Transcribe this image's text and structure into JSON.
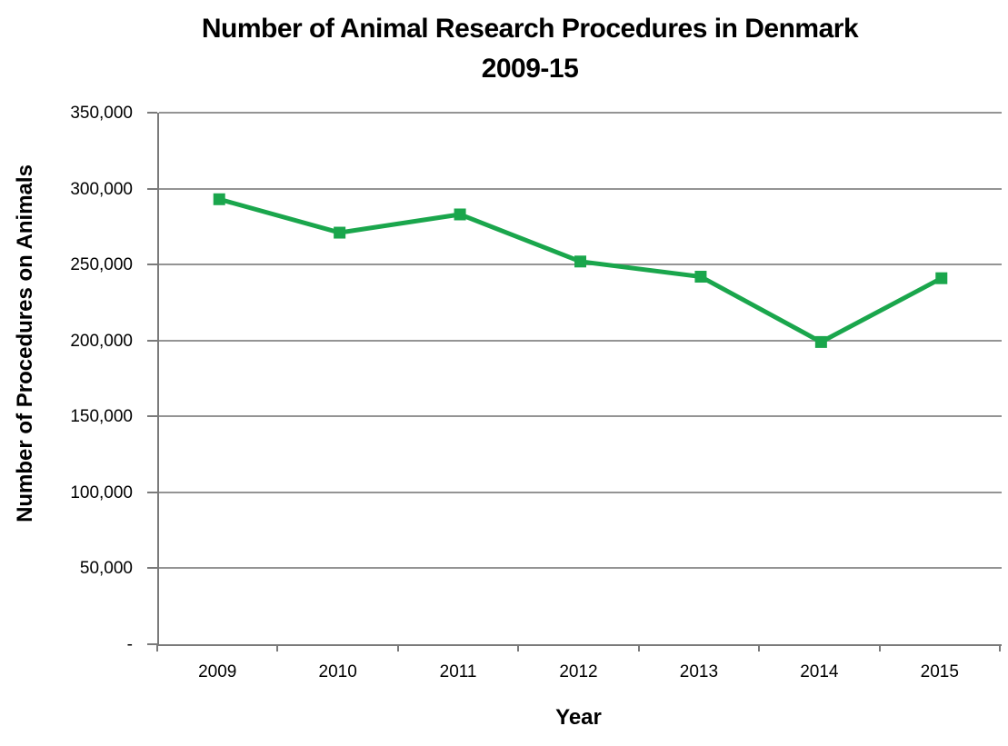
{
  "title": {
    "line1": "Number of Animal Research Procedures in Denmark",
    "line2": "2009-15"
  },
  "chart_data": {
    "type": "line",
    "title": "Number of Animal Research Procedures in Denmark 2009-15",
    "categories": [
      "2009",
      "2010",
      "2011",
      "2012",
      "2013",
      "2014",
      "2015"
    ],
    "values": [
      293000,
      271000,
      283000,
      252000,
      242000,
      199000,
      241000
    ],
    "xlabel": "Year",
    "ylabel": "Number of Procedures on Animals",
    "ylim": [
      0,
      350000
    ],
    "ytick_interval": 50000,
    "ytick_labels_top_to_bottom": [
      "350,000",
      "300,000",
      "250,000",
      "200,000",
      "150,000",
      "100,000",
      "50,000",
      "-"
    ],
    "grid": true,
    "legend": "none",
    "marker": "square",
    "series_color": "#1aa64c"
  },
  "colors": {
    "series": "#1aa64c",
    "gridline": "#949494",
    "axis": "#7a7a7a",
    "text": "#000000",
    "background": "#ffffff"
  }
}
